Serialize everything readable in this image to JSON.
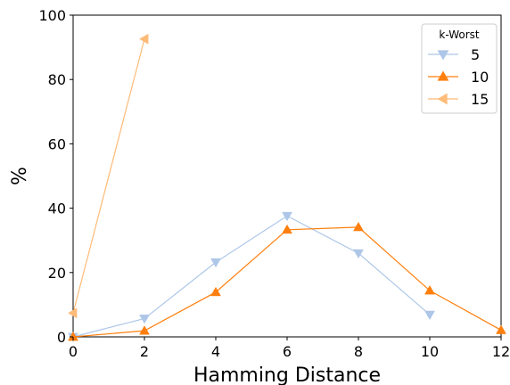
{
  "chart_data": {
    "type": "line",
    "title": "",
    "xlabel": "Hamming Distance",
    "ylabel": "%",
    "xlim": [
      0,
      12
    ],
    "ylim": [
      0,
      100
    ],
    "xticks": [
      0,
      2,
      4,
      6,
      8,
      10,
      12
    ],
    "yticks": [
      0,
      20,
      40,
      60,
      80,
      100
    ],
    "grid": false,
    "legend": {
      "title": "k-Worst",
      "placement": "top-right"
    },
    "series": [
      {
        "name": "5",
        "color": "#aec7e8",
        "marker": "triangle-down",
        "x": [
          0,
          2,
          4,
          6,
          8,
          10
        ],
        "y": [
          0,
          5.7,
          23.2,
          37.6,
          26.0,
          6.9
        ]
      },
      {
        "name": "10",
        "color": "#ff7f0e",
        "marker": "triangle-up",
        "x": [
          0,
          2,
          4,
          6,
          8,
          10,
          12
        ],
        "y": [
          0,
          1.9,
          13.9,
          33.3,
          34.1,
          14.4,
          2.1
        ]
      },
      {
        "name": "15",
        "color": "#ffbb78",
        "marker": "triangle-left",
        "x": [
          0,
          2
        ],
        "y": [
          7.4,
          92.6
        ]
      }
    ]
  }
}
